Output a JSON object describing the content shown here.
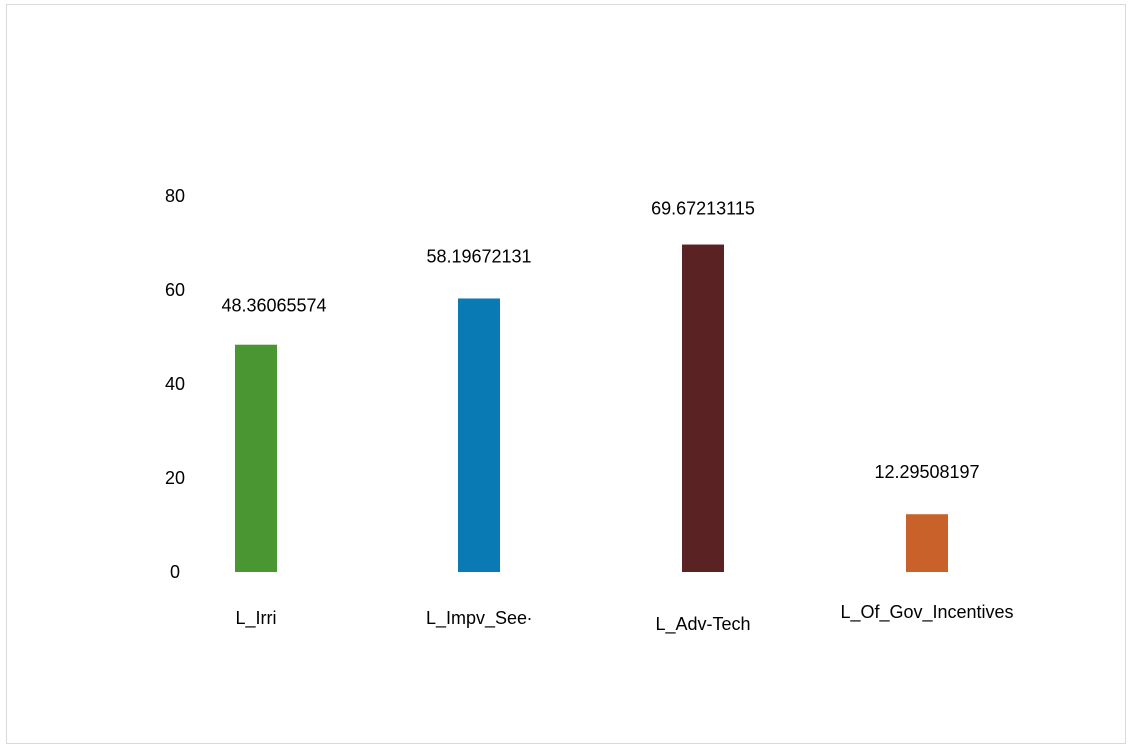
{
  "chart_data": {
    "type": "bar",
    "categories": [
      "L_Irri",
      "L_Impv_See·",
      "L_Adv-Tech",
      "L_Of_Gov_Incentives"
    ],
    "values": [
      48.36065574,
      58.19672131,
      69.67213115,
      12.29508197
    ],
    "data_labels": [
      "48.36065574",
      "58.19672131",
      "69.67213115",
      "12.29508197"
    ],
    "y_ticks": [
      0,
      20,
      40,
      60,
      80
    ],
    "ylim": [
      0,
      80
    ],
    "grid": false,
    "legend": "none",
    "colors": [
      "#4a9632",
      "#0a7ab5",
      "#5a2222",
      "#c8612a"
    ]
  }
}
